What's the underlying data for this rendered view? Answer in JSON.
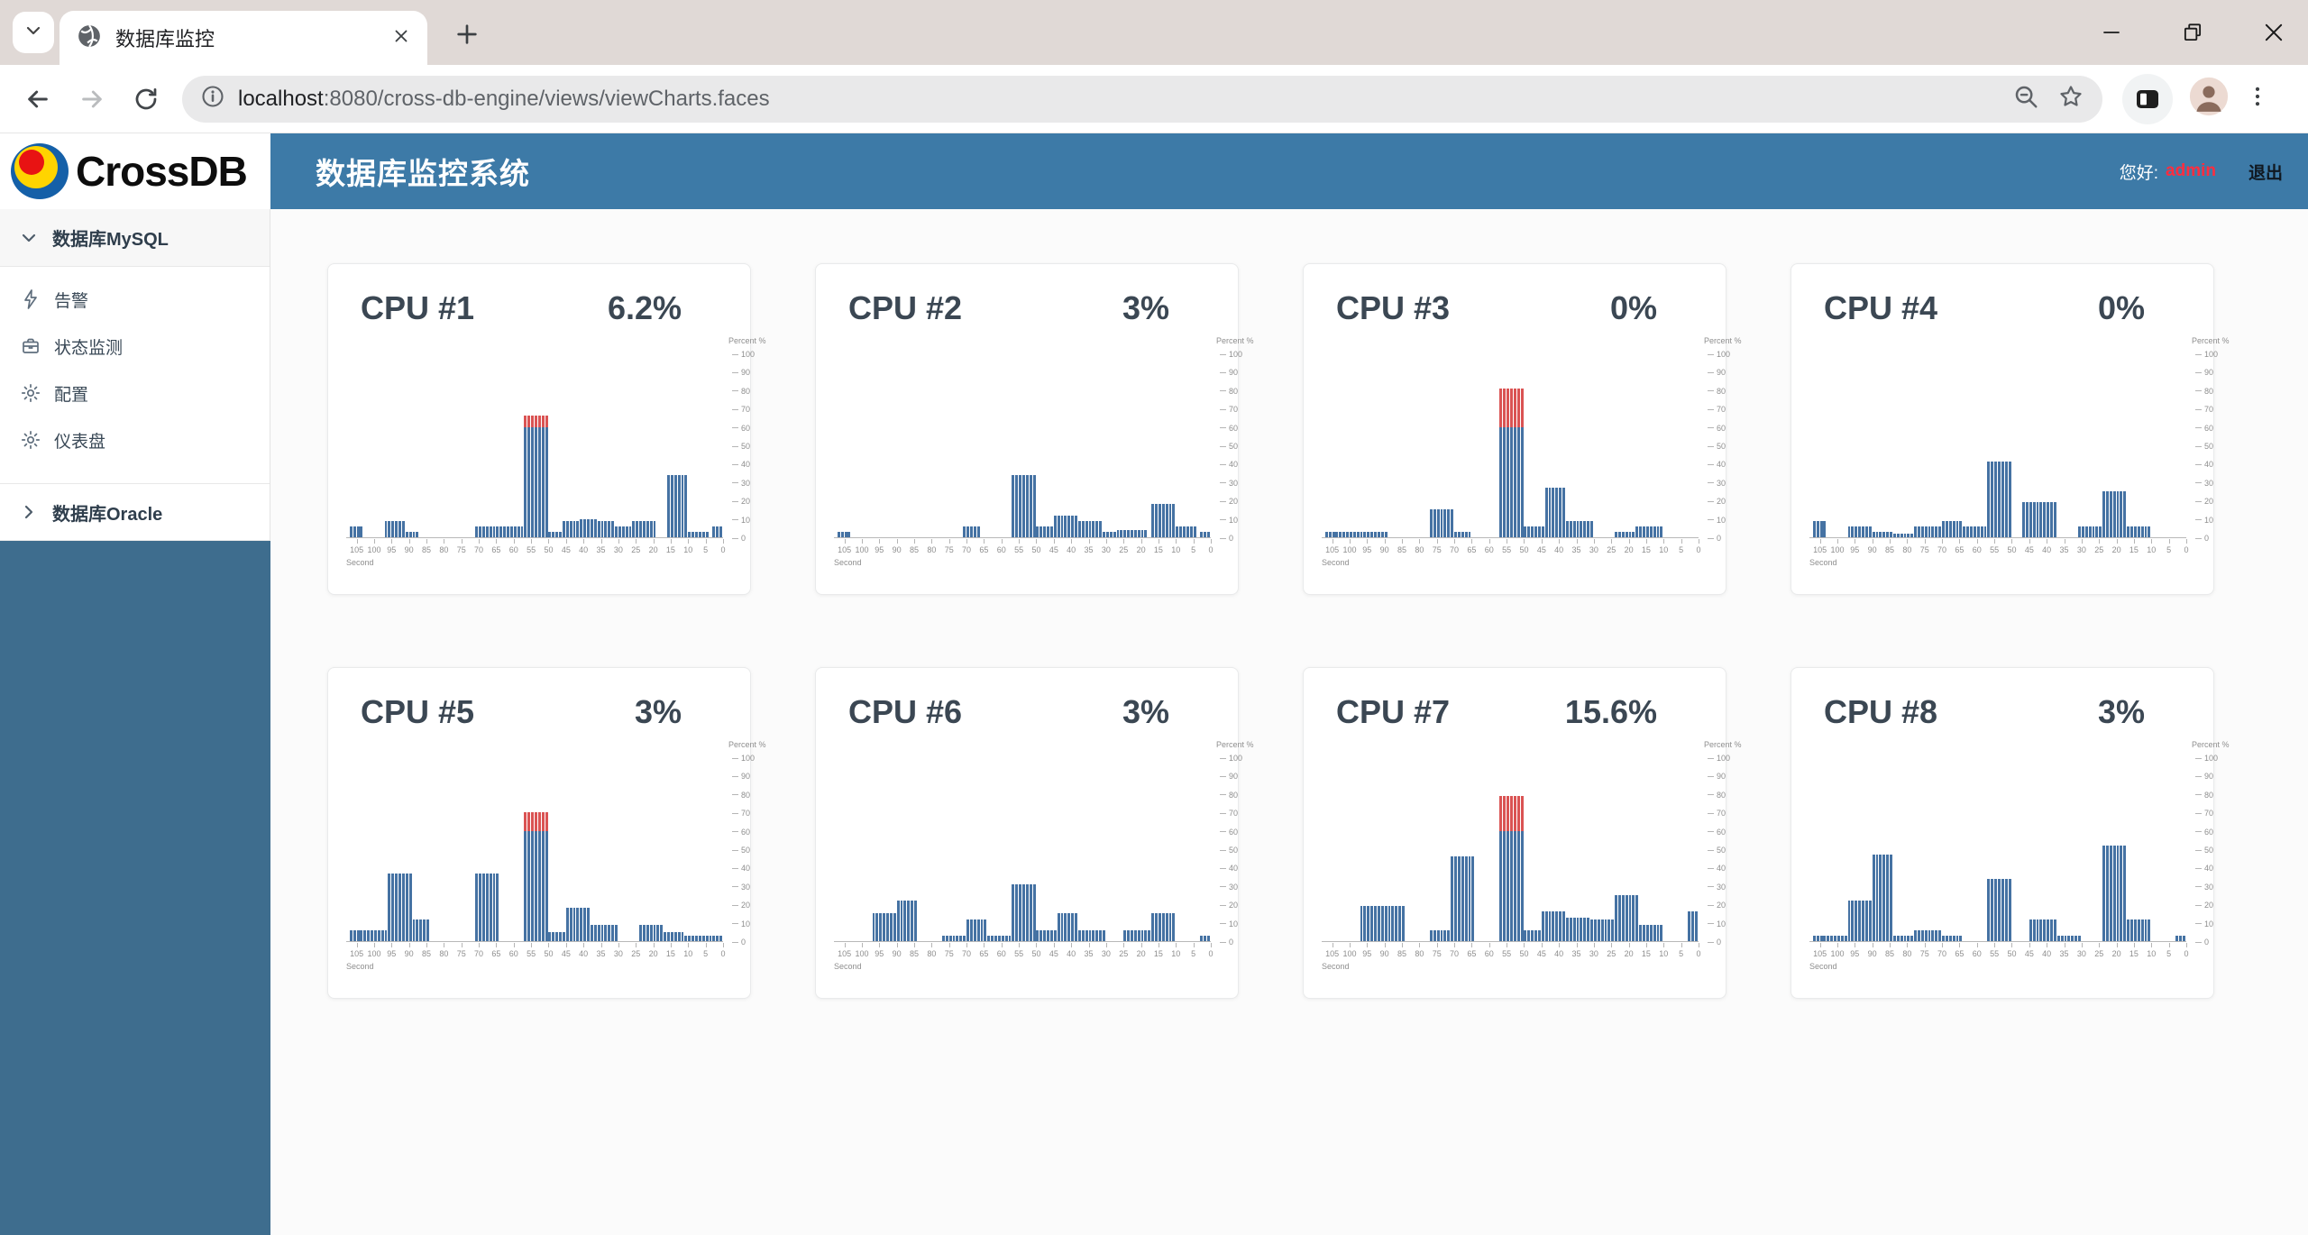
{
  "browser": {
    "tab_title": "数据库监控",
    "url_host": "localhost",
    "url_rest": ":8080/cross-db-engine/views/viewCharts.faces"
  },
  "header": {
    "logo_text": "CrossDB",
    "title": "数据库监控系统",
    "greeting_label": "您好:",
    "username": "admin",
    "logout_label": "退出"
  },
  "sidebar": {
    "groups": [
      {
        "key": "mysql",
        "label": "数据库MySQL",
        "state": "expanded",
        "items": [
          {
            "key": "alerts",
            "icon": "lightning-icon",
            "label": "告警"
          },
          {
            "key": "status-monitor",
            "icon": "toolbox-icon",
            "label": "状态监测"
          },
          {
            "key": "config",
            "icon": "gear-icon",
            "label": "配置"
          },
          {
            "key": "dashboard",
            "icon": "gear-icon",
            "label": "仪表盘"
          }
        ]
      },
      {
        "key": "oracle",
        "label": "数据库Oracle",
        "state": "collapsed",
        "items": []
      }
    ]
  },
  "chart_data": {
    "type": "bar",
    "x_axis": {
      "label": "Second",
      "ticks": [
        105,
        100,
        95,
        90,
        85,
        80,
        75,
        70,
        65,
        60,
        55,
        50,
        45,
        40,
        35,
        30,
        25,
        20,
        15,
        10,
        5,
        0
      ],
      "range": [
        108,
        0
      ]
    },
    "y_axis": {
      "label": "Percent %",
      "ticks": [
        0,
        10,
        20,
        30,
        40,
        50,
        60,
        70,
        80,
        90,
        100
      ],
      "range": [
        0,
        100
      ]
    },
    "threshold": 60,
    "colors": {
      "bar": "#4572a3",
      "over_threshold": "#da5353"
    },
    "charts": [
      {
        "title": "CPU #1",
        "value": "6.2%",
        "segments": [
          [
            106,
            103,
            6
          ],
          [
            96,
            91,
            9
          ],
          [
            90,
            87,
            3
          ],
          [
            70,
            57,
            6
          ],
          [
            56,
            50,
            66
          ],
          [
            49,
            46,
            3
          ],
          [
            45,
            41,
            9
          ],
          [
            40,
            36,
            10
          ],
          [
            35,
            31,
            9
          ],
          [
            30,
            26,
            6
          ],
          [
            25,
            19,
            9
          ],
          [
            15,
            10,
            34
          ],
          [
            9,
            4,
            3
          ],
          [
            2,
            0,
            6
          ]
        ]
      },
      {
        "title": "CPU #2",
        "value": "3%",
        "segments": [
          [
            106,
            103,
            3
          ],
          [
            70,
            66,
            6
          ],
          [
            56,
            50,
            34
          ],
          [
            49,
            45,
            6
          ],
          [
            44,
            38,
            12
          ],
          [
            37,
            31,
            9
          ],
          [
            30,
            27,
            3
          ],
          [
            26,
            18,
            4
          ],
          [
            16,
            10,
            18
          ],
          [
            9,
            4,
            6
          ],
          [
            2,
            0,
            3
          ]
        ]
      },
      {
        "title": "CPU #3",
        "value": "0%",
        "segments": [
          [
            106,
            89,
            3
          ],
          [
            76,
            70,
            15
          ],
          [
            69,
            65,
            3
          ],
          [
            56,
            50,
            81
          ],
          [
            49,
            44,
            6
          ],
          [
            43,
            38,
            27
          ],
          [
            37,
            30,
            9
          ],
          [
            23,
            18,
            3
          ],
          [
            17,
            10,
            6
          ]
        ]
      },
      {
        "title": "CPU #4",
        "value": "0%",
        "segments": [
          [
            106,
            103,
            9
          ],
          [
            96,
            90,
            6
          ],
          [
            89,
            84,
            3
          ],
          [
            83,
            78,
            2
          ],
          [
            77,
            70,
            6
          ],
          [
            69,
            64,
            9
          ],
          [
            63,
            57,
            6
          ],
          [
            56,
            50,
            41
          ],
          [
            46,
            37,
            19
          ],
          [
            30,
            24,
            6
          ],
          [
            23,
            17,
            25
          ],
          [
            16,
            10,
            6
          ]
        ]
      },
      {
        "title": "CPU #5",
        "value": "3%",
        "segments": [
          [
            106,
            96,
            6
          ],
          [
            95,
            89,
            37
          ],
          [
            88,
            84,
            12
          ],
          [
            70,
            64,
            37
          ],
          [
            56,
            50,
            70
          ],
          [
            49,
            45,
            5
          ],
          [
            44,
            38,
            18
          ],
          [
            37,
            30,
            9
          ],
          [
            23,
            17,
            9
          ],
          [
            16,
            11,
            5
          ],
          [
            10,
            0,
            3
          ]
        ]
      },
      {
        "title": "CPU #6",
        "value": "3%",
        "segments": [
          [
            96,
            90,
            15
          ],
          [
            89,
            84,
            22
          ],
          [
            76,
            70,
            3
          ],
          [
            69,
            64,
            12
          ],
          [
            63,
            57,
            3
          ],
          [
            56,
            50,
            31
          ],
          [
            49,
            44,
            6
          ],
          [
            43,
            38,
            15
          ],
          [
            37,
            30,
            6
          ],
          [
            24,
            17,
            6
          ],
          [
            16,
            10,
            15
          ],
          [
            2,
            0,
            3
          ]
        ]
      },
      {
        "title": "CPU #7",
        "value": "15.6%",
        "segments": [
          [
            96,
            84,
            19
          ],
          [
            76,
            71,
            6
          ],
          [
            70,
            64,
            46
          ],
          [
            56,
            50,
            79
          ],
          [
            49,
            45,
            6
          ],
          [
            44,
            38,
            16
          ],
          [
            37,
            31,
            13
          ],
          [
            30,
            24,
            12
          ],
          [
            23,
            17,
            25
          ],
          [
            16,
            10,
            9
          ],
          [
            2,
            0,
            16
          ]
        ]
      },
      {
        "title": "CPU #8",
        "value": "3%",
        "segments": [
          [
            106,
            97,
            3
          ],
          [
            96,
            90,
            22
          ],
          [
            89,
            84,
            47
          ],
          [
            83,
            78,
            3
          ],
          [
            77,
            70,
            6
          ],
          [
            69,
            64,
            3
          ],
          [
            56,
            50,
            34
          ],
          [
            44,
            37,
            12
          ],
          [
            36,
            30,
            3
          ],
          [
            23,
            17,
            52
          ],
          [
            16,
            10,
            12
          ],
          [
            2,
            0,
            3
          ]
        ]
      }
    ]
  }
}
